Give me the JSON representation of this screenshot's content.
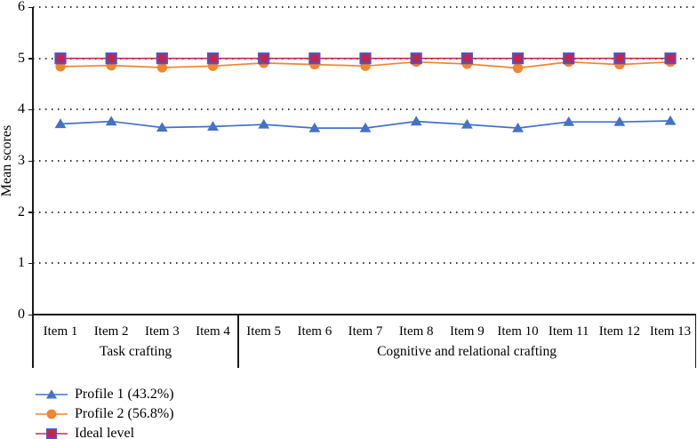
{
  "figure": {
    "background": "#ffffff"
  },
  "chart_data": {
    "type": "line",
    "title": "",
    "xlabel": "",
    "ylabel": "Mean scores",
    "ylim": [
      0,
      6
    ],
    "yticks": [
      0,
      1,
      2,
      3,
      4,
      5,
      6
    ],
    "grid": {
      "style": "dotted",
      "orientation": "horizontal",
      "color": "#3a3a3a"
    },
    "axis_color": "#1a1a1a",
    "legend_position": "bottom-left",
    "categories": [
      "Item 1",
      "Item 2",
      "Item 3",
      "Item 4",
      "Item 5",
      "Item 6",
      "Item 7",
      "Item 8",
      "Item 9",
      "Item 10",
      "Item 11",
      "Item 12",
      "Item 13"
    ],
    "groups": [
      {
        "label": "Task crafting",
        "first_item_index": 0,
        "last_item_index": 3
      },
      {
        "label": "Cognitive and relational crafting",
        "first_item_index": 4,
        "last_item_index": 12
      }
    ],
    "series": [
      {
        "name": "Profile 1 (43.2%)",
        "marker": "triangle",
        "line_color": "#4472C8",
        "marker_color": "#4472C8",
        "values": [
          3.72,
          3.77,
          3.65,
          3.67,
          3.71,
          3.64,
          3.64,
          3.77,
          3.71,
          3.64,
          3.76,
          3.76,
          3.78
        ]
      },
      {
        "name": "Profile 2 (56.8%)",
        "marker": "circle",
        "line_color": "#F0862D",
        "marker_color": "#F0862D",
        "values": [
          4.84,
          4.86,
          4.82,
          4.85,
          4.91,
          4.88,
          4.85,
          4.93,
          4.89,
          4.81,
          4.93,
          4.88,
          4.93
        ]
      },
      {
        "name": "Ideal level",
        "marker": "square",
        "line_color": "#CE2950",
        "marker_color": "#C8244A",
        "marker_border_color": "#5153C5",
        "values": [
          5,
          5,
          5,
          5,
          5,
          5,
          5,
          5,
          5,
          5,
          5,
          5,
          5
        ]
      }
    ]
  }
}
